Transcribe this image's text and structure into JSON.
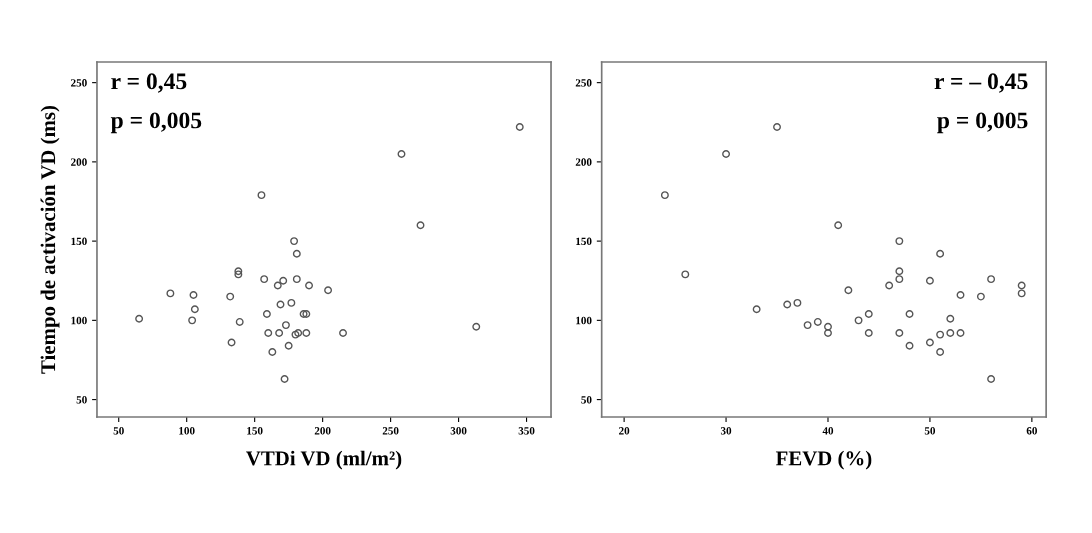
{
  "chart_data": [
    {
      "type": "scatter",
      "xlabel": "VTDi VD (ml/m²)",
      "ylabel": "Tiempo de activación VD (ms)",
      "annotations": [
        "r = 0,45",
        "p = 0,005"
      ],
      "x": [
        65,
        88,
        105,
        104,
        106,
        132,
        133,
        138,
        138,
        139,
        155,
        157,
        159,
        160,
        167,
        168,
        169,
        171,
        172,
        173,
        175,
        177,
        179,
        181,
        181,
        180,
        182,
        163,
        186,
        188,
        188,
        190,
        204,
        215,
        258,
        272,
        313,
        345
      ],
      "values": [
        101,
        117,
        116,
        100,
        107,
        115,
        86,
        131,
        129,
        99,
        179,
        126,
        104,
        92,
        122,
        92,
        110,
        125,
        63,
        97,
        84,
        111,
        150,
        142,
        126,
        91,
        92,
        80,
        104,
        104,
        92,
        122,
        119,
        92,
        205,
        160,
        96,
        222
      ],
      "color": "#555555",
      "marker": "circle",
      "grid": false,
      "xlim": [
        34,
        368
      ],
      "xticks": [
        50,
        100,
        150,
        200,
        250,
        300,
        350
      ],
      "ylim": [
        39,
        263
      ],
      "yticks": [
        50,
        100,
        150,
        200,
        250
      ]
    },
    {
      "type": "scatter",
      "xlabel": "FEVD (%)",
      "annotations": [
        "r = – 0,45",
        "p = 0,005"
      ],
      "x": [
        35,
        30,
        41,
        47,
        51,
        26,
        24,
        47,
        47,
        46,
        50,
        56,
        42,
        59,
        59,
        53,
        55,
        33,
        36,
        37,
        38,
        39,
        40,
        40,
        43,
        44,
        44,
        48,
        47,
        48,
        50,
        51,
        51,
        52,
        52,
        53,
        56
      ],
      "values": [
        222,
        205,
        160,
        150,
        142,
        129,
        179,
        131,
        126,
        122,
        125,
        126,
        119,
        122,
        117,
        116,
        115,
        107,
        110,
        111,
        97,
        99,
        96,
        92,
        100,
        104,
        92,
        104,
        92,
        84,
        86,
        91,
        80,
        101,
        92,
        92,
        63
      ],
      "color": "#555555",
      "marker": "circle",
      "grid": false,
      "xlim": [
        17.8,
        61.4
      ],
      "xticks": [
        20,
        30,
        40,
        50,
        60
      ],
      "ylim": [
        39,
        263
      ],
      "yticks": [
        50,
        100,
        150,
        200,
        250
      ]
    }
  ]
}
